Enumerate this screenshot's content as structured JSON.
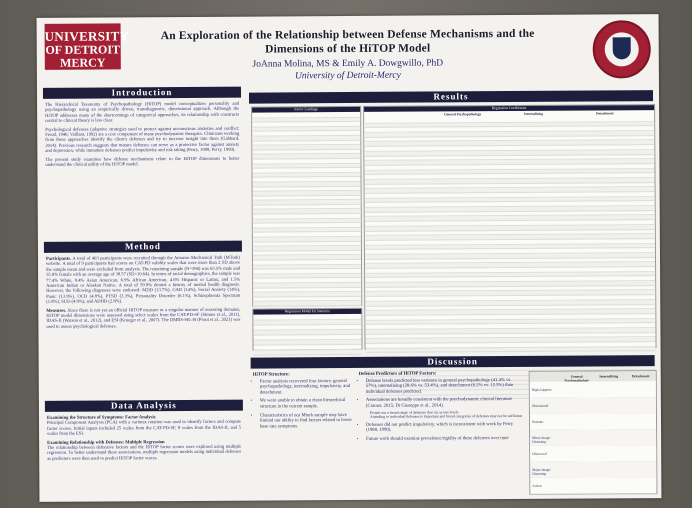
{
  "header": {
    "logo_lines": [
      "UNIVERSITY",
      "OF DETROIT",
      "MERCY"
    ],
    "title_lines": [
      "An Exploration of the Relationship between Defense Mechanisms and the",
      "Dimensions of the HiTOP Model"
    ],
    "authors": "JoAnna Molina, MS & Emily A. Dowgwillo, PhD",
    "affiliation": "University of Detroit-Mercy"
  },
  "sections": {
    "introduction": "Introduction",
    "method": "Method",
    "data_analysis": "Data Analysis",
    "results": "Results",
    "discussion": "Discussion"
  },
  "introduction": {
    "p1": "The Hierarchical Taxonomy of Psychopathology (HiTOP) model conceptualizes personality and psychopathology using an empirically driven, transdiagnostic, dimensional approach. Although the HiTOP addresses many of the shortcomings of categorical approaches, its relationship with constructs central to clinical theory is less clear.",
    "p2": "Psychological defenses (adaptive strategies used to protect against unconscious anxieties and conflict; Freud, 1946; Vaillant, 1992) are a core component of many psychodynamic therapies. Clinicians working from these approaches identify the client's defenses and try to increase insight into them (Gabbard, 2014). Previous research suggests that mature defenses can serve as a protective factor against anxiety and depression, while immature defenses predict impulsivity and risk taking (Perry, 1988; Perry, 1990).",
    "p3": "The present study examines how defense mechanisms relate to the HiTOP dimensions to better understand the clinical utility of the HiTOP model."
  },
  "method": {
    "p1_label": "Participants.",
    "p1": "A total of 403 participants were recruited through the Amazon Mechanical Turk (MTurk) website. A total of 9 participants had scores on CAT-PD validity scales that were more than 2 SD above the sample mean and were excluded from analysis. The remaining sample (N=394) was 63.5% male and 35.8% female with an average age of 38.57 (SD=10.64). In terms of racial demographics, the sample was 77.4% White, 8.4% Asian American, 6.9% African American, 4.6% Hispanic or Latinx, and 1.5% American Indian or Alaskan Native. A total of 59.9% denied a history of mental health diagnosis. However, the following diagnoses were endorsed: MDD (13.7%), GAD (14%), Social Anxiety (14%), Panic (13.9%), OCD (4.8%), PTSD (3.3%), Personality Disorder (6.1%), Schizophrenia Spectrum (1.8%), SUD (4.8%), and ADHD (2.8%).",
    "p2_label": "Measures.",
    "p2": "Since there is not yet an official HiTOP measure or a singular manner of assessing domains, HiTOP model dimensions were assessed using select scales from the CAT-PD-SF (Simms et al., 2011), IDAS-II (Watson et al., 2012), and ESI (Krueger et al., 2007). The DMRS-SR-30 (Prout et al., 2021) was used to assess psychological defenses."
  },
  "data_analysis": {
    "h1": "Examining the Structure of Symptoms: Factor Analysis",
    "p1": "Principal Component Analysis (PCA) with a varimax rotation was used to identify factors and compute factor scores. Initial inputs included 25 scales from the CAT-PD-SF, 8 scales from the IDAS-II, and 5 scales from the ESI.",
    "h2": "Examining Relationship with Defenses: Multiple Regression",
    "p2": "The relationship between defensive factors and the HiTOP factor scores were explored using multiple regression. To better understand these associations, multiple regression models using individual defenses as predictors were then used to predict HiTOP factor scores."
  },
  "results": {
    "factor_loadings_title": "Factor Loadings",
    "regression_title": "Regression Model Fit Statistics",
    "coefficients_title": "Regression Coefficients",
    "coef_groups": [
      "General Psychopathology",
      "Internalizing",
      "Detachment"
    ],
    "summary_cols": [
      "General Psychopathology",
      "Internalizing",
      "Detachment"
    ],
    "summary_rows": [
      "High Adaptive",
      "Obsessional",
      "Neurotic",
      "Minor Image-Distorting",
      "Disavowal",
      "Major Image-Distorting",
      "Action"
    ]
  },
  "discussion": {
    "col1_head": "HiTOP Structure:",
    "col1_items": [
      "Factor analysis recovered four factors: general psychopathology, internalizing, impulsivity, and detachment.",
      "We were unable to obtain a clean hierarchical structure in the current sample.",
      "Characteristics of our Mturk sample may have limited our ability to find factors related to lower base rate symptoms."
    ],
    "col2_head": "Defense Predictors of HiTOP Factors:",
    "col2_items": [
      "Defense levels predicted less variance in general psychopathology (41.4% vs. 57%), internalizing (28.6% vs. 53.4%), and detachment (6.2% vs. 12.5%) than individual defenses predicted.",
      "Associations are broadly consistent with the psychodynamic clinical literature (Cramer, 2015; Di Giuseppe et al., 2014).",
      "Defenses did not predict impulsivity, which is inconsistent with work by Perry (1988, 1990).",
      "Future work should examine prevalence/rigidity of these defenses over time"
    ],
    "col2_sub": [
      "People use a broad range of defenses that cut across levels",
      "Attending to individual defenses is important and broad categories of defenses may not be sufficient"
    ]
  }
}
